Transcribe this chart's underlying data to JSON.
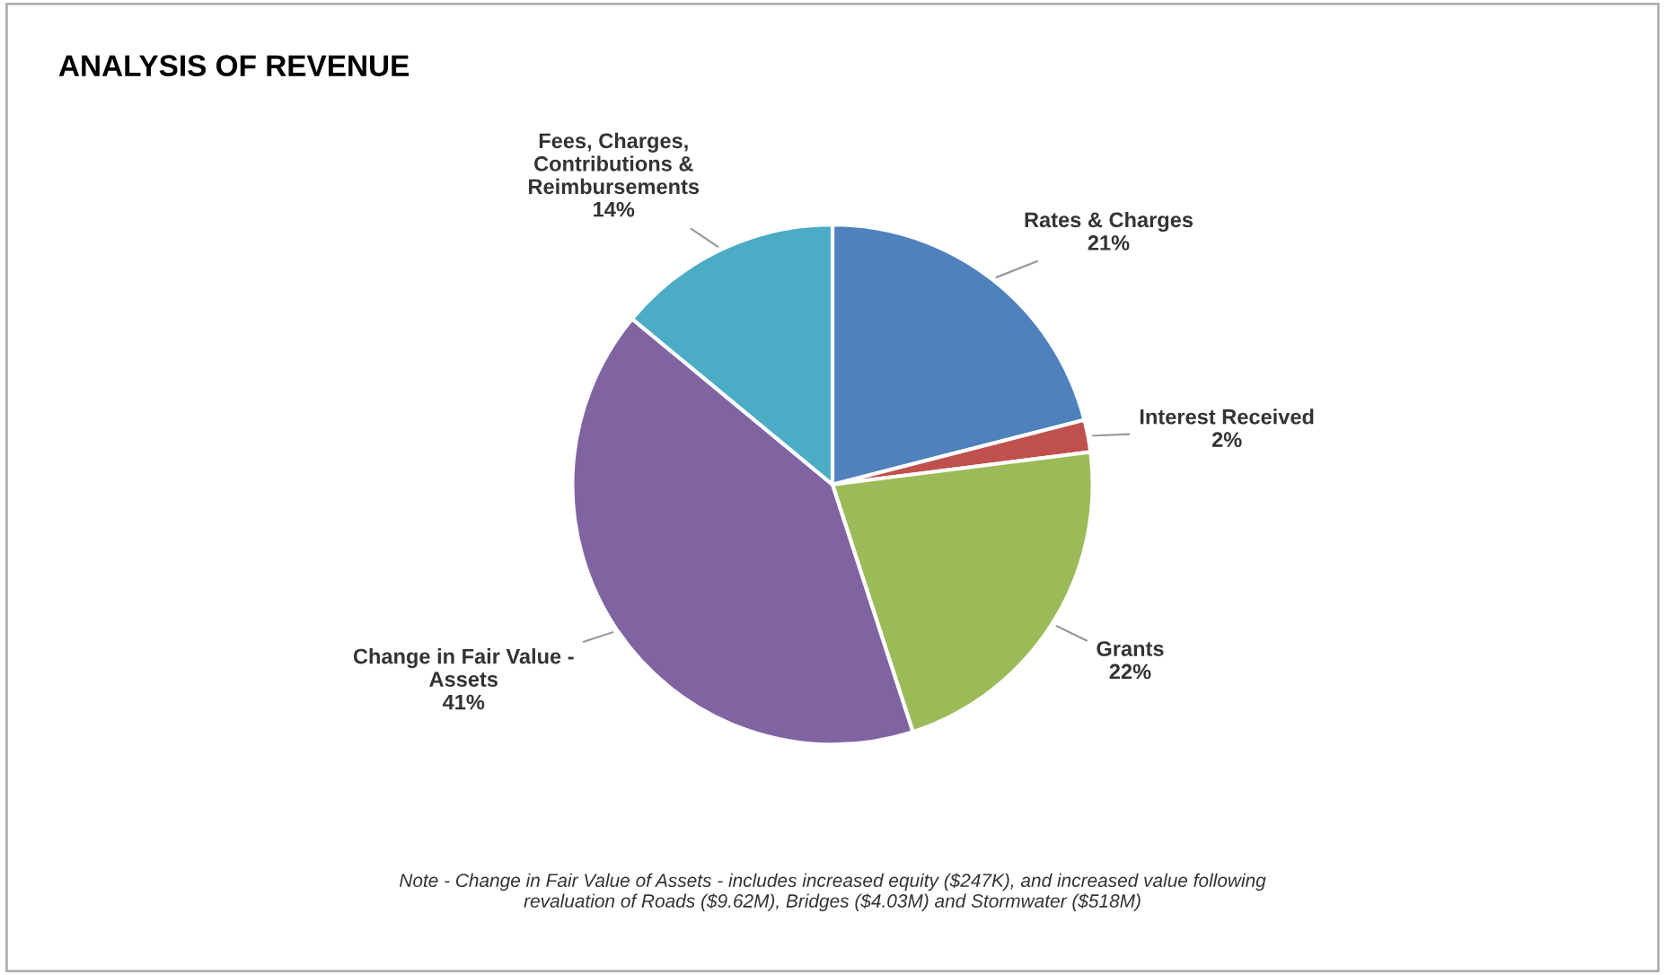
{
  "chart_data": {
    "type": "pie",
    "title": "ANALYSIS OF REVENUE",
    "categories": [
      "Rates & Charges",
      "Interest Received",
      "Grants",
      "Change in Fair Value -\nAssets",
      "Fees, Charges,\nContributions &\nReimbursements"
    ],
    "values": [
      21,
      2,
      22,
      41,
      14
    ],
    "value_labels": [
      "21%",
      "2%",
      "22%",
      "41%",
      "14%"
    ],
    "colors": [
      "#4f81bd",
      "#c0504d",
      "#9bbb59",
      "#8064a2",
      "#4bacc6"
    ],
    "legend": false,
    "annotations": [
      "Note - Change in Fair Value of Assets - includes increased equity ($247K), and increased value following\nrevaluation of Roads ($9.62M), Bridges ($4.03M) and Stormwater ($518M)"
    ]
  }
}
